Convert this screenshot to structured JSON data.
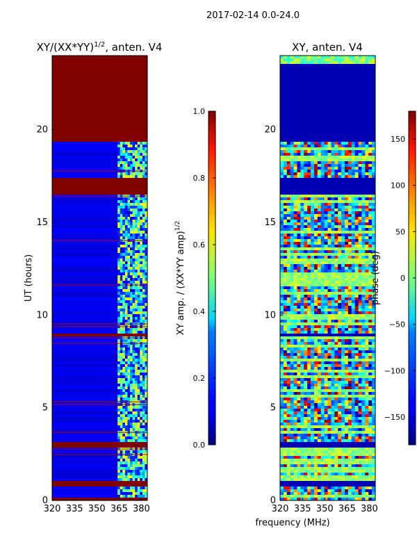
{
  "suptitle": "2017-02-14 0.0-24.0",
  "xlabel_shared": "frequency (MHz)",
  "chart_data": [
    {
      "type": "heatmap",
      "title_main": "XY/(XX*YY)",
      "title_sup": "1/2",
      "title_tail": ", anten. V4",
      "xlabel": "",
      "ylabel": "UT (hours)",
      "xlim": [
        320,
        384
      ],
      "ylim": [
        0,
        24
      ],
      "xticks": [
        "320",
        "335",
        "350",
        "365",
        "380"
      ],
      "xtick_values": [
        320,
        335,
        350,
        365,
        380
      ],
      "yticks": [
        "0",
        "5",
        "10",
        "15",
        "20"
      ],
      "ytick_values": [
        0,
        5,
        10,
        15,
        20
      ],
      "colorbar": {
        "label_main": "XY amp. / (XX*YY amp)",
        "label_sup": "1/2",
        "range": [
          0.0,
          1.0
        ],
        "ticks": [
          "0.0",
          "0.2",
          "0.4",
          "0.6",
          "0.8",
          "1.0"
        ],
        "tick_values": [
          0.0,
          0.2,
          0.4,
          0.6,
          0.8,
          1.0
        ]
      },
      "saturated_hour_bands": [
        [
          23.5,
          24.0
        ],
        [
          19.3,
          23.5
        ],
        [
          16.5,
          17.4
        ],
        [
          8.8,
          9.0
        ],
        [
          2.8,
          3.1
        ],
        [
          0.8,
          1.0
        ],
        [
          0.0,
          0.1
        ]
      ],
      "active_freq_range_mhz": [
        364,
        384
      ]
    },
    {
      "type": "heatmap",
      "title": "XY, anten. V4",
      "xlabel": "frequency (MHz)",
      "ylabel": "",
      "xlim": [
        320,
        384
      ],
      "ylim": [
        0,
        24
      ],
      "xticks": [
        "320",
        "335",
        "350",
        "365",
        "380"
      ],
      "xtick_values": [
        320,
        335,
        350,
        365,
        380
      ],
      "yticks": [
        "0",
        "5",
        "10",
        "15",
        "20"
      ],
      "ytick_values": [
        0,
        5,
        10,
        15,
        20
      ],
      "colorbar": {
        "label": "phase (deg)",
        "range": [
          -180,
          180
        ],
        "ticks": [
          "−150",
          "−100",
          "−50",
          "0",
          "50",
          "100",
          "150"
        ],
        "tick_values": [
          -150,
          -100,
          -50,
          0,
          50,
          100,
          150
        ]
      },
      "blank_hour_bands": [
        [
          19.3,
          23.5
        ],
        [
          16.5,
          17.4
        ],
        [
          8.8,
          9.0
        ],
        [
          2.8,
          3.1
        ],
        [
          0.8,
          1.0
        ]
      ]
    }
  ]
}
